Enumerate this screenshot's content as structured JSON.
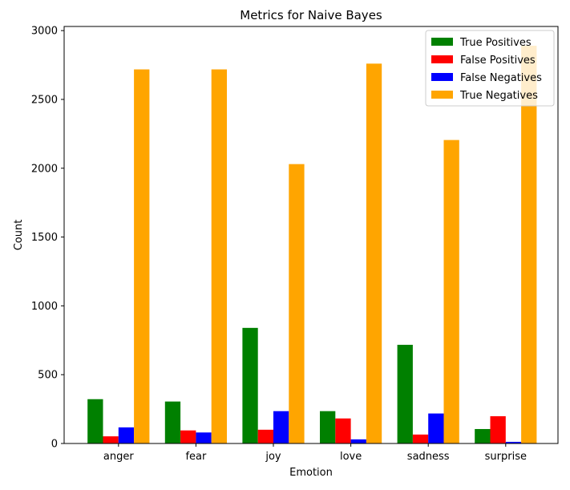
{
  "chart_data": {
    "type": "bar",
    "title": "Metrics for Naive Bayes",
    "xlabel": "Emotion",
    "ylabel": "Count",
    "categories": [
      "anger",
      "fear",
      "joy",
      "love",
      "sadness",
      "surprise"
    ],
    "ylim": [
      0,
      3030
    ],
    "yticks": [
      0,
      500,
      1000,
      1500,
      2000,
      2500,
      3000
    ],
    "grid": false,
    "legend_position": "top-right",
    "series": [
      {
        "name": "True Positives",
        "color": "#008000",
        "values": [
          322,
          305,
          840,
          235,
          717,
          105
        ]
      },
      {
        "name": "False Positives",
        "color": "#ff0000",
        "values": [
          52,
          95,
          100,
          182,
          65,
          198
        ]
      },
      {
        "name": "False Negatives",
        "color": "#0000ff",
        "values": [
          117,
          80,
          235,
          30,
          218,
          12
        ]
      },
      {
        "name": "True Negatives",
        "color": "#ffa500",
        "values": [
          2718,
          2718,
          2030,
          2760,
          2205,
          2890
        ]
      }
    ]
  }
}
